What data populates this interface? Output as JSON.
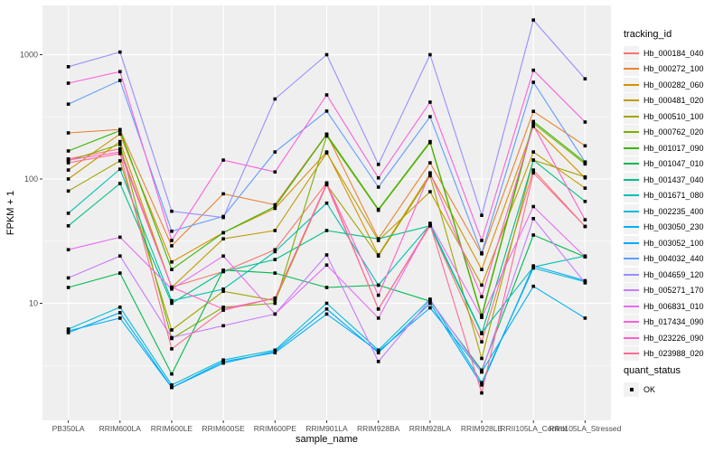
{
  "figure": {
    "x_axis_title": "sample_name",
    "y_axis_title": "FPKM + 1",
    "legend_tracking_title": "tracking_id",
    "legend_quant_title": "quant_status",
    "quant_ok_label": "OK"
  },
  "chart_data": {
    "type": "line",
    "title": "",
    "xlabel": "sample_name",
    "ylabel": "FPKM + 1",
    "y_scale": "log10",
    "ylim": [
      1.15,
      2500
    ],
    "y_major_ticks": [
      1000,
      100,
      10
    ],
    "y_minor_gridlines": [
      316.2,
      31.62,
      3.162
    ],
    "grid": true,
    "legend_position": "right",
    "panel_background": "#EFEFEF",
    "gridline_color": "#FFFFFF",
    "tick_label_color": "#4D4D4D",
    "point_color": "#000000",
    "point_shape": "square",
    "categories": [
      "PB350LA",
      "RRIM600LA",
      "RRIM600LE",
      "RRIM600SE",
      "RRIM600PE",
      "RRIM901LA",
      "RRIM928BA",
      "RRIM928LA",
      "RRIM928LE",
      "RRII105LA_Control",
      "RRII105LA_Stressed"
    ],
    "series": [
      {
        "name": "Hb_000184_040",
        "color": "#F8766D",
        "values": [
          145,
          175,
          13.5,
          18,
          27,
          93,
          9,
          42,
          4.9,
          118,
          41.5
        ]
      },
      {
        "name": "Hb_000272_100",
        "color": "#EA8331",
        "values": [
          235,
          250,
          29,
          76,
          62,
          230,
          33,
          135,
          25,
          350,
          185
        ]
      },
      {
        "name": "Hb_000282_060",
        "color": "#D89000",
        "values": [
          118,
          230,
          21.5,
          37,
          58,
          165,
          24.5,
          110,
          18.7,
          265,
          102
        ]
      },
      {
        "name": "Hb_000481_020",
        "color": "#C09B00",
        "values": [
          100,
          200,
          13.4,
          33,
          38.5,
          162,
          32,
          79,
          14,
          165,
          84.5
        ]
      },
      {
        "name": "Hb_000510_100",
        "color": "#A3A500",
        "values": [
          80,
          140,
          6.1,
          12.5,
          10.5,
          90,
          24,
          106,
          3.6,
          142,
          104
        ]
      },
      {
        "name": "Hb_000762_020",
        "color": "#7CAE00",
        "values": [
          140,
          190,
          5.2,
          9.3,
          10,
          222,
          56,
          196,
          7.8,
          280,
          132
        ]
      },
      {
        "name": "Hb_001017_090",
        "color": "#39B600",
        "values": [
          168,
          245,
          18.7,
          37,
          60,
          228,
          57,
          200,
          8.0,
          290,
          136
        ]
      },
      {
        "name": "Hb_001047_010",
        "color": "#00BB4E",
        "values": [
          13.4,
          17.5,
          2.7,
          18.5,
          17.5,
          13.4,
          14,
          10.4,
          2.9,
          35.4,
          23.6
        ]
      },
      {
        "name": "Hb_001437_040",
        "color": "#00C087",
        "values": [
          42,
          92,
          10,
          18,
          22.5,
          38.5,
          33,
          42,
          5.7,
          142,
          66
        ]
      },
      {
        "name": "Hb_001671_080",
        "color": "#00C0B2",
        "values": [
          53,
          120,
          10.5,
          13,
          26,
          64,
          14,
          43,
          5.8,
          19.6,
          24
        ]
      },
      {
        "name": "Hb_002235_400",
        "color": "#00BCD8",
        "values": [
          6.2,
          9.3,
          2.2,
          3.5,
          4.2,
          10,
          4.2,
          10.8,
          2.3,
          19.2,
          14.9
        ]
      },
      {
        "name": "Hb_003050_230",
        "color": "#00B0F6",
        "values": [
          6.0,
          7.6,
          2.1,
          3.4,
          4.0,
          8.2,
          4.1,
          9.2,
          2.8,
          13.7,
          7.6
        ]
      },
      {
        "name": "Hb_003052_100",
        "color": "#00A9FF",
        "values": [
          5.8,
          8.4,
          2.1,
          3.3,
          4.1,
          9.0,
          4.0,
          10.0,
          2.2,
          20,
          15.2
        ]
      },
      {
        "name": "Hb_004032_440",
        "color": "#619CFF",
        "values": [
          400,
          620,
          38,
          50,
          165,
          352,
          86,
          317,
          25.4,
          600,
          137
        ]
      },
      {
        "name": "Hb_004659_120",
        "color": "#9590FF",
        "values": [
          800,
          1050,
          55,
          49,
          440,
          1000,
          131,
          1000,
          51,
          1900,
          640
        ]
      },
      {
        "name": "Hb_005271_170",
        "color": "#C77CFF",
        "values": [
          16,
          24,
          5.3,
          6.6,
          8.2,
          24.5,
          3.4,
          10.6,
          2.8,
          48,
          14.6
        ]
      },
      {
        "name": "Hb_006831_010",
        "color": "#E76BF3",
        "values": [
          27,
          34,
          13,
          24,
          8.2,
          20.3,
          7.6,
          44,
          7.7,
          60,
          23.6
        ]
      },
      {
        "name": "Hb_017434_090",
        "color": "#FA62DB",
        "values": [
          590,
          730,
          32,
          142,
          114,
          475,
          102,
          415,
          32,
          750,
          287
        ]
      },
      {
        "name": "Hb_023226_090",
        "color": "#FF61C7",
        "values": [
          142,
          165,
          13.5,
          9.0,
          11,
          92,
          11.6,
          112,
          11.3,
          270,
          47
        ]
      },
      {
        "name": "Hb_023988_020",
        "color": "#FF6B94",
        "values": [
          135,
          160,
          4.3,
          8.8,
          11,
          90,
          9,
          43,
          1.9,
          112,
          41.5
        ]
      }
    ],
    "quant_status": {
      "title": "quant_status",
      "items": [
        {
          "label": "OK",
          "marker": "black-square"
        }
      ]
    }
  }
}
